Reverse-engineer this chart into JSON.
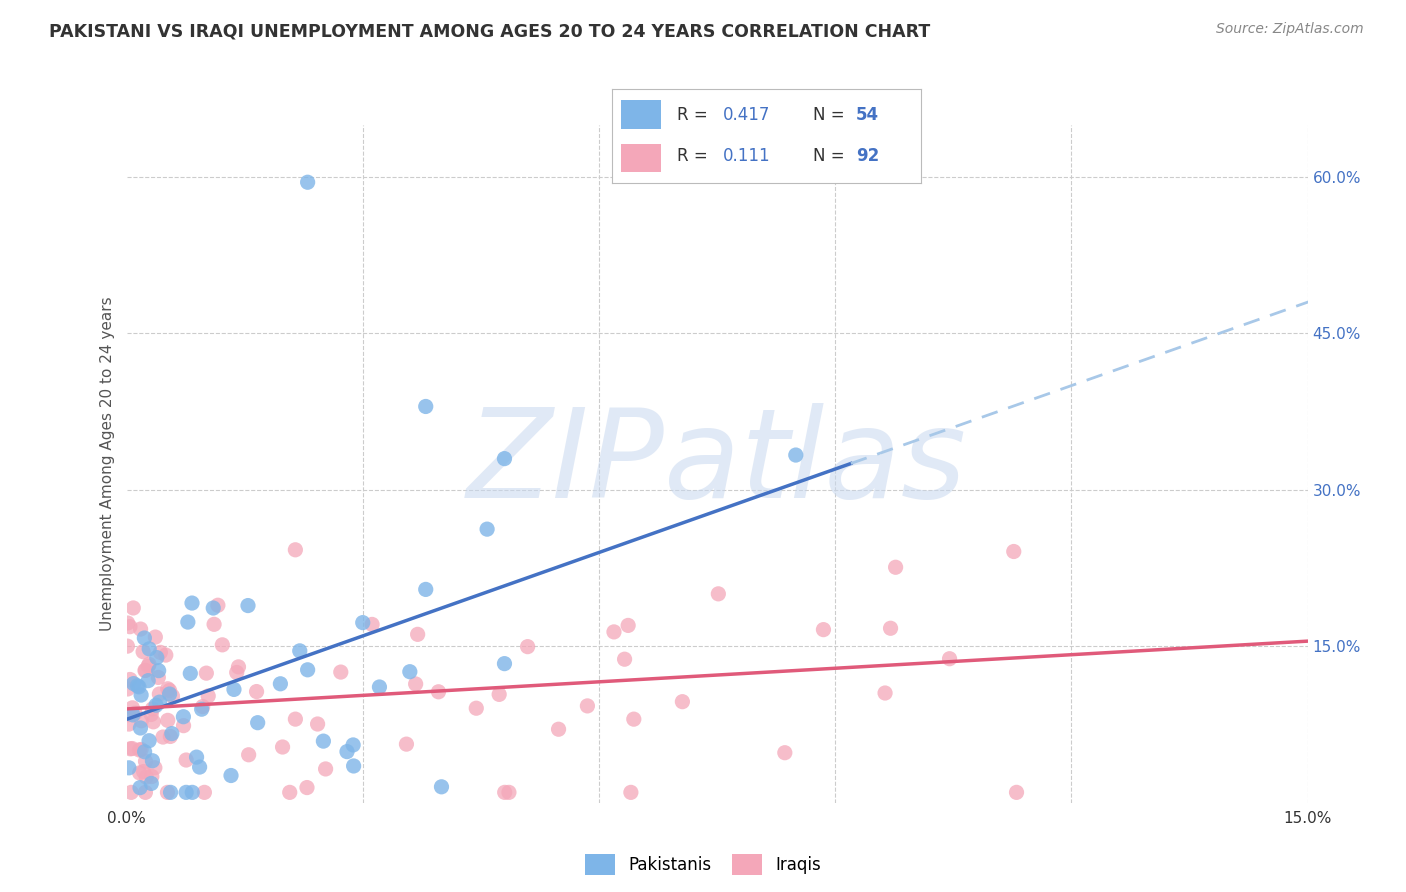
{
  "title": "PAKISTANI VS IRAQI UNEMPLOYMENT AMONG AGES 20 TO 24 YEARS CORRELATION CHART",
  "source": "Source: ZipAtlas.com",
  "ylabel": "Unemployment Among Ages 20 to 24 years",
  "xlim": [
    0.0,
    0.15
  ],
  "ylim": [
    0.0,
    0.65
  ],
  "xticks": [
    0.0,
    0.03,
    0.06,
    0.09,
    0.12,
    0.15
  ],
  "xticklabels": [
    "0.0%",
    "",
    "",
    "",
    "",
    "15.0%"
  ],
  "yticks_right": [
    0.15,
    0.3,
    0.45,
    0.6
  ],
  "yticklabels_right": [
    "15.0%",
    "30.0%",
    "45.0%",
    "60.0%"
  ],
  "pakistani_color": "#7eb5e8",
  "iraqi_color": "#f4a7b9",
  "pakistani_line_color": "#4472c4",
  "iraqi_line_color": "#e05a7a",
  "pakistani_dashed_color": "#a8c8e8",
  "legend_r_pak": "R = 0.417",
  "legend_n_pak": "N = 54",
  "legend_r_ira": "R =  0.111",
  "legend_n_ira": "N = 92",
  "watermark_text": "ZIPatlas",
  "background_color": "#ffffff",
  "grid_color": "#cccccc",
  "title_color": "#333333",
  "source_color": "#888888",
  "ylabel_color": "#555555",
  "right_tick_color": "#4472c4",
  "n_value_color": "#4472c4",
  "r_value_color": "#4472c4",
  "pak_intercept": 0.075,
  "pak_slope_val": 1.8,
  "ira_intercept": 0.082,
  "ira_slope_val": 0.48
}
